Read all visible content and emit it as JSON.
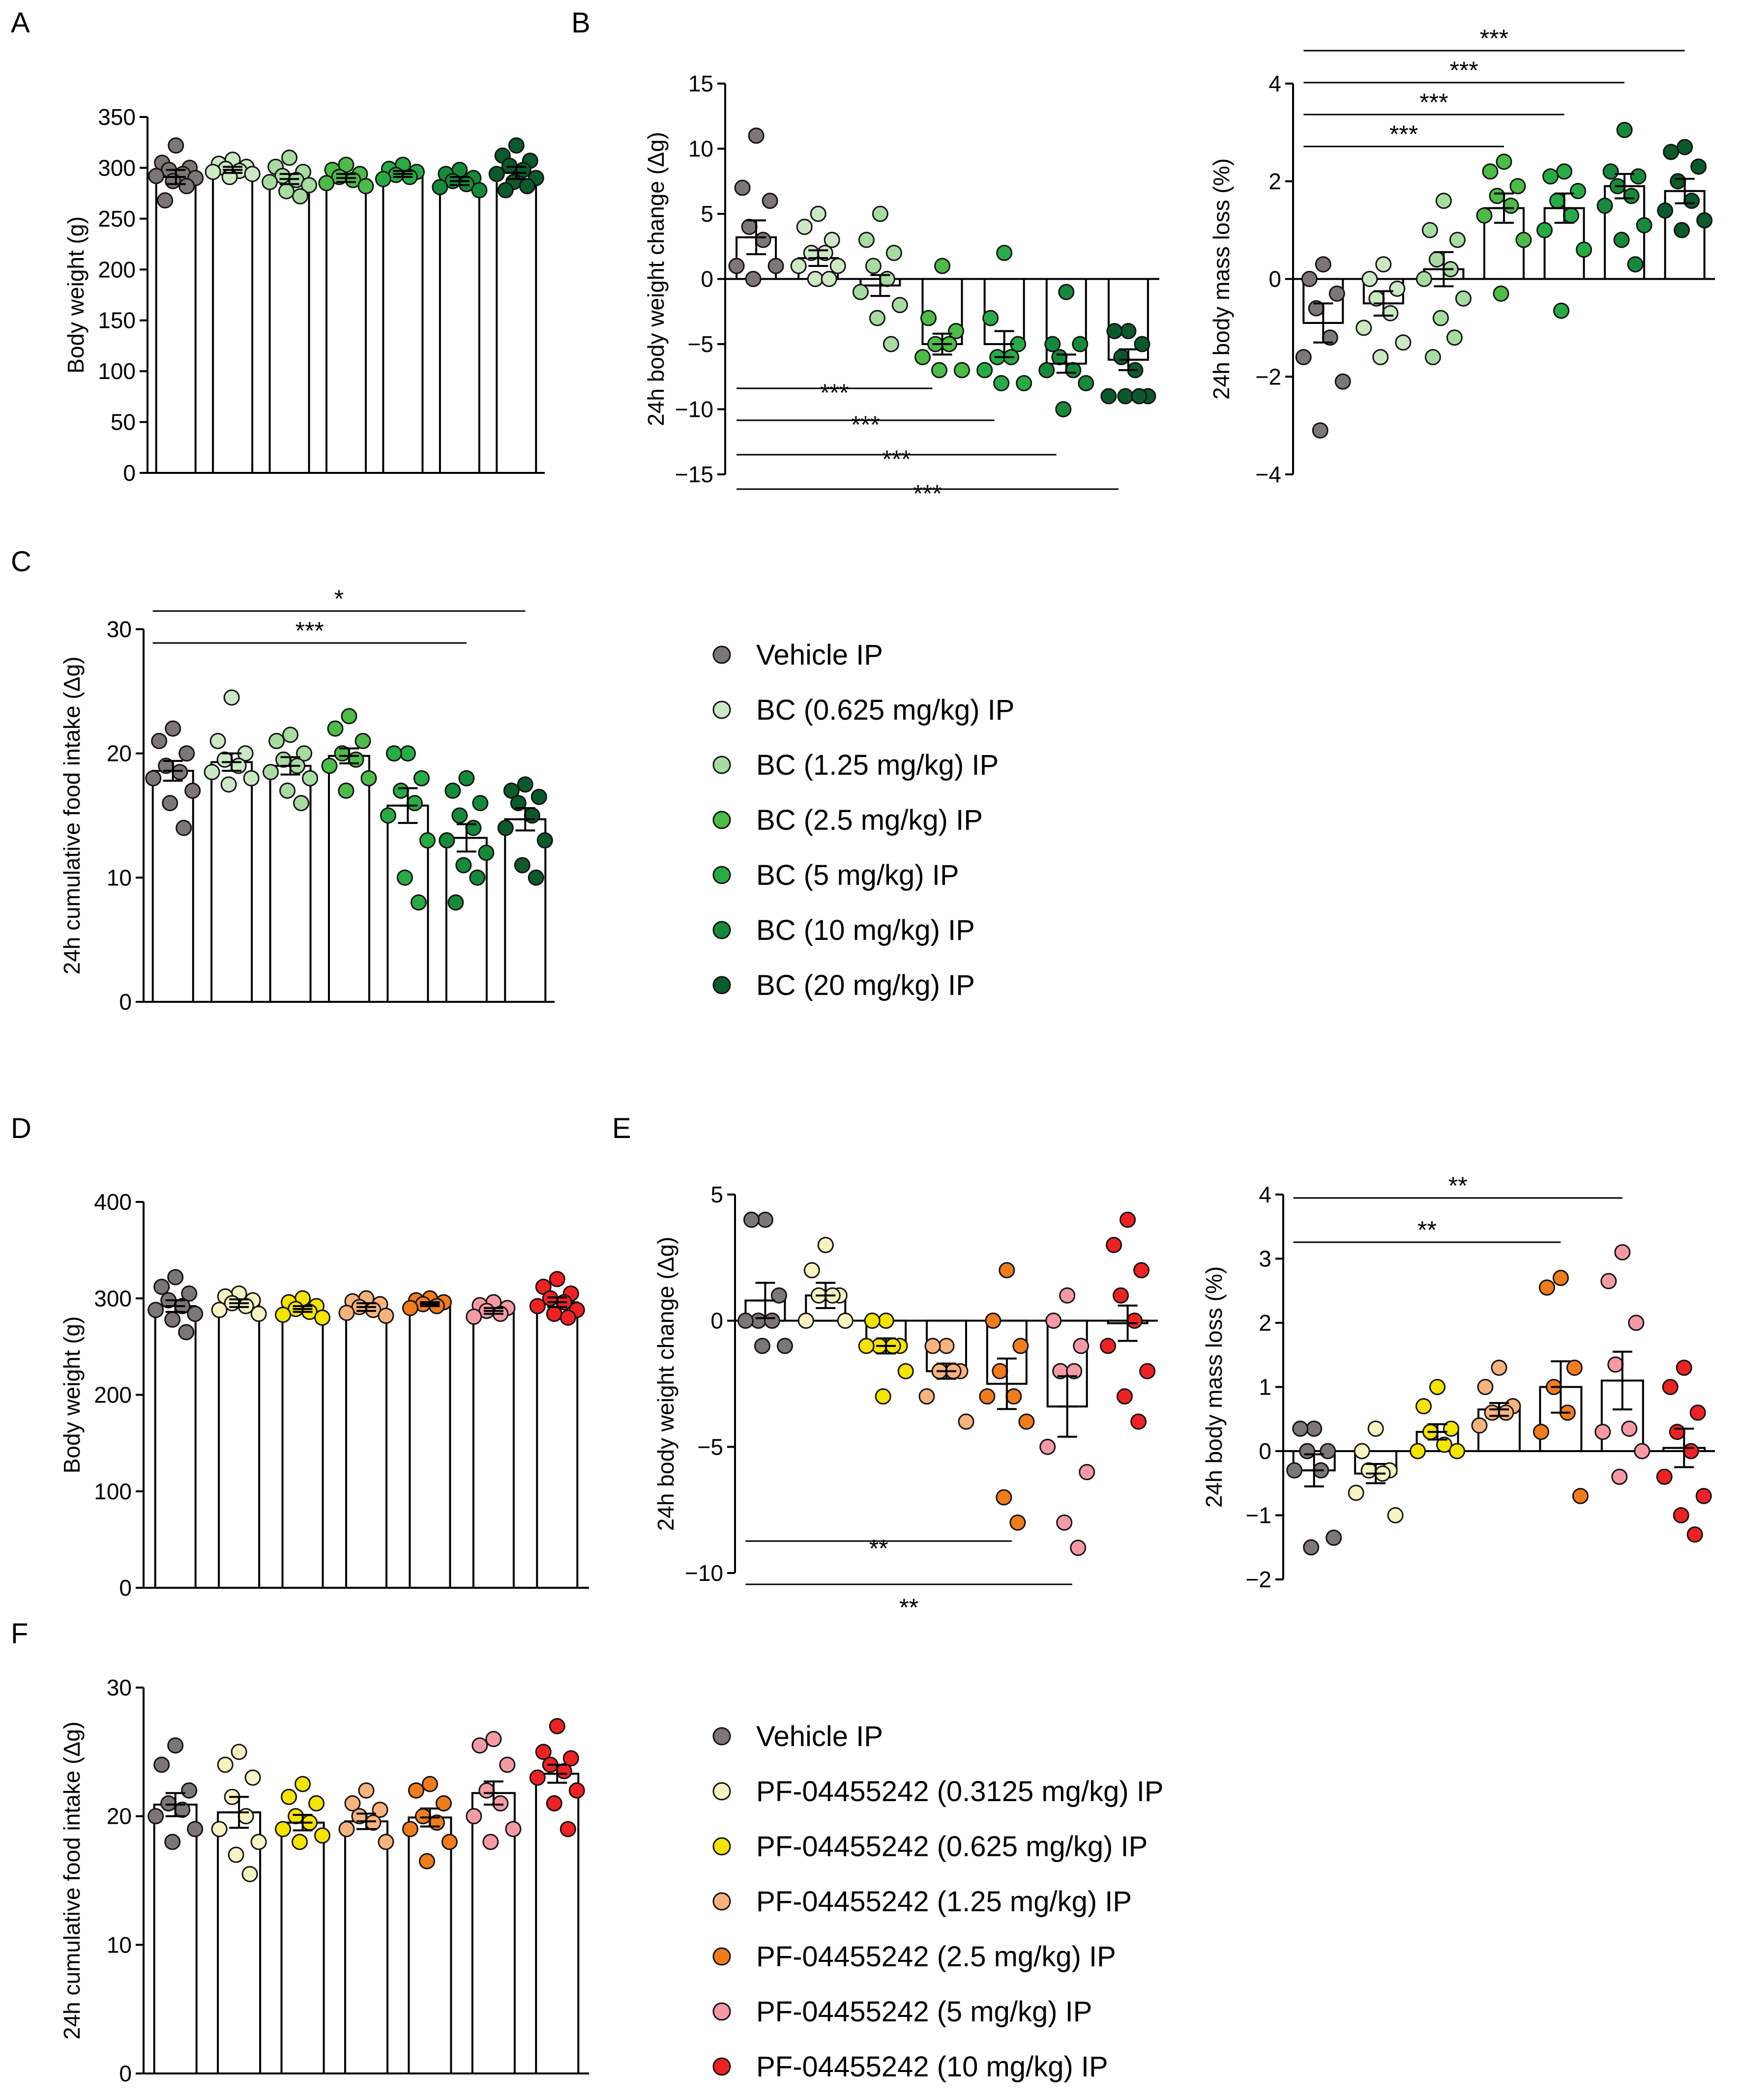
{
  "palettes": {
    "green": [
      "#7c7675",
      "#cde8c5",
      "#a8dba2",
      "#4cbb47",
      "#27ac45",
      "#168a3b",
      "#0b5a2b"
    ],
    "pf": [
      "#7c7675",
      "#f8f4c2",
      "#f4e400",
      "#f7b37c",
      "#f07c1c",
      "#f59aa5",
      "#ee2222"
    ]
  },
  "legends": [
    {
      "name": "legend-bc",
      "palette": "green",
      "items": [
        "Vehicle IP",
        "BC (0.625 mg/kg) IP",
        "BC (1.25 mg/kg) IP",
        "BC (2.5 mg/kg) IP",
        "BC (5 mg/kg) IP",
        "BC (10 mg/kg) IP",
        "BC (20 mg/kg) IP"
      ]
    },
    {
      "name": "legend-pf",
      "palette": "pf",
      "items": [
        "Vehicle IP",
        "PF-04455242 (0.3125 mg/kg) IP",
        "PF-04455242 (0.625 mg/kg) IP",
        "PF-04455242 (1.25 mg/kg) IP",
        "PF-04455242 (2.5 mg/kg) IP",
        "PF-04455242 (5 mg/kg) IP",
        "PF-04455242 (10 mg/kg) IP"
      ]
    }
  ],
  "chart_data": [
    {
      "id": "A-body-weight",
      "panel_label": "A",
      "type": "bar",
      "palette": "green",
      "ylabel": "Body weight (g)",
      "ylim": [
        0,
        350
      ],
      "yticks": [
        0,
        50,
        100,
        150,
        200,
        250,
        300,
        350
      ],
      "groups": [
        {
          "mean": 291,
          "sem": 7,
          "points": [
            322,
            305,
            300,
            298,
            294,
            292,
            290,
            287,
            282,
            268
          ]
        },
        {
          "mean": 298,
          "sem": 3,
          "points": [
            308,
            304,
            301,
            299,
            297,
            296,
            294,
            291
          ]
        },
        {
          "mean": 289,
          "sem": 5,
          "points": [
            310,
            301,
            296,
            292,
            288,
            286,
            283,
            277,
            272
          ]
        },
        {
          "mean": 290,
          "sem": 4,
          "points": [
            303,
            298,
            294,
            291,
            288,
            285,
            282
          ]
        },
        {
          "mean": 294,
          "sem": 3,
          "points": [
            303,
            299,
            296,
            293,
            291,
            289
          ]
        },
        {
          "mean": 287,
          "sem": 4,
          "points": [
            298,
            294,
            290,
            287,
            284,
            281,
            278
          ]
        },
        {
          "mean": 295,
          "sem": 6,
          "points": [
            322,
            312,
            307,
            302,
            298,
            294,
            290,
            286,
            282,
            278
          ]
        }
      ],
      "significance": []
    },
    {
      "id": "B-24h-body-weight-change",
      "panel_label": "B",
      "type": "bar",
      "palette": "green",
      "ylabel": "24h body weight change (Δg)",
      "ylim": [
        -15,
        15
      ],
      "yticks": [
        -15,
        -10,
        -5,
        0,
        5,
        10,
        15
      ],
      "groups": [
        {
          "mean": 3.2,
          "sem": 1.3,
          "points": [
            11,
            7,
            6,
            4,
            3,
            1,
            1,
            0
          ]
        },
        {
          "mean": 1.6,
          "sem": 0.6,
          "points": [
            5,
            4,
            3,
            2,
            2,
            1,
            1,
            0,
            0
          ]
        },
        {
          "mean": -0.5,
          "sem": 0.8,
          "points": [
            5,
            3,
            2,
            1,
            0,
            -1,
            -2,
            -3,
            -5
          ]
        },
        {
          "mean": -5.0,
          "sem": 0.8,
          "points": [
            1,
            -3,
            -4,
            -5,
            -5,
            -6,
            -7,
            -7
          ]
        },
        {
          "mean": -5.0,
          "sem": 1.0,
          "points": [
            2,
            -3,
            -5,
            -6,
            -6,
            -7,
            -8,
            -8
          ]
        },
        {
          "mean": -6.5,
          "sem": 0.7,
          "points": [
            -1,
            -5,
            -5,
            -6,
            -7,
            -7,
            -8,
            -10
          ]
        },
        {
          "mean": -6.2,
          "sem": 0.8,
          "points": [
            -4,
            -4,
            -5,
            -6,
            -7,
            -9,
            -9,
            -9,
            -9
          ]
        }
      ],
      "significance": [
        {
          "from": 0,
          "to": 3,
          "label": "***"
        },
        {
          "from": 0,
          "to": 4,
          "label": "***"
        },
        {
          "from": 0,
          "to": 5,
          "label": "***"
        },
        {
          "from": 0,
          "to": 6,
          "label": "***"
        }
      ]
    },
    {
      "id": "B-24h-body-mass-loss",
      "panel_label": "",
      "type": "bar",
      "palette": "green",
      "ylabel": "24h body mass loss (%)",
      "ylim": [
        -4,
        4
      ],
      "yticks": [
        -4,
        -2,
        0,
        2,
        4
      ],
      "groups": [
        {
          "mean": -0.9,
          "sem": 0.4,
          "points": [
            0.3,
            0,
            -0.3,
            -0.6,
            -1.2,
            -1.6,
            -2.1,
            -3.1
          ]
        },
        {
          "mean": -0.5,
          "sem": 0.25,
          "points": [
            0.3,
            0,
            -0.2,
            -0.4,
            -0.7,
            -1.0,
            -1.3,
            -1.6
          ]
        },
        {
          "mean": 0.2,
          "sem": 0.35,
          "points": [
            1.6,
            1.0,
            0.8,
            0.4,
            0.2,
            0,
            -0.4,
            -0.8,
            -1.2,
            -1.6
          ]
        },
        {
          "mean": 1.45,
          "sem": 0.3,
          "points": [
            2.4,
            2.2,
            1.9,
            1.7,
            1.5,
            1.3,
            0.8,
            -0.3
          ]
        },
        {
          "mean": 1.45,
          "sem": 0.3,
          "points": [
            2.2,
            2.1,
            1.8,
            1.6,
            1.3,
            1.0,
            0.6,
            -0.65
          ]
        },
        {
          "mean": 1.9,
          "sem": 0.25,
          "points": [
            3.05,
            2.2,
            2.1,
            1.9,
            1.7,
            1.5,
            1.1,
            0.8,
            0.3
          ]
        },
        {
          "mean": 1.8,
          "sem": 0.25,
          "points": [
            2.7,
            2.6,
            2.3,
            2.0,
            1.6,
            1.4,
            1.2,
            1.0
          ]
        }
      ],
      "significance": [
        {
          "from": 0,
          "to": 6,
          "label": "***"
        },
        {
          "from": 0,
          "to": 5,
          "label": "***"
        },
        {
          "from": 0,
          "to": 4,
          "label": "***"
        },
        {
          "from": 0,
          "to": 3,
          "label": "***"
        }
      ]
    },
    {
      "id": "C-24h-cumulative-food-intake",
      "panel_label": "C",
      "type": "bar",
      "palette": "green",
      "ylabel": "24h cumulative food intake (Δg)",
      "ylim": [
        0,
        30
      ],
      "yticks": [
        0,
        10,
        20,
        30
      ],
      "groups": [
        {
          "mean": 18.6,
          "sem": 0.8,
          "points": [
            22,
            21,
            20,
            19,
            18.5,
            18,
            17,
            16,
            14
          ]
        },
        {
          "mean": 19.3,
          "sem": 0.7,
          "points": [
            24.5,
            21,
            20,
            19.5,
            19,
            18.5,
            18,
            17.5
          ]
        },
        {
          "mean": 19.0,
          "sem": 0.7,
          "points": [
            21.5,
            21,
            20,
            19.5,
            19,
            18.5,
            18,
            17,
            16
          ]
        },
        {
          "mean": 19.8,
          "sem": 0.6,
          "points": [
            23,
            22,
            21,
            20,
            19.5,
            19,
            18,
            17
          ]
        },
        {
          "mean": 15.8,
          "sem": 1.4,
          "points": [
            20,
            20,
            18,
            17,
            16,
            15,
            13,
            10,
            8
          ]
        },
        {
          "mean": 13.2,
          "sem": 1.1,
          "points": [
            18,
            17,
            16,
            15,
            14,
            13,
            12,
            11,
            10,
            8
          ]
        },
        {
          "mean": 14.7,
          "sem": 0.9,
          "points": [
            17.5,
            17,
            16.5,
            16,
            15,
            14,
            13,
            11,
            10
          ]
        }
      ],
      "significance": [
        {
          "from": 0,
          "to": 6,
          "label": "*"
        },
        {
          "from": 0,
          "to": 5,
          "label": "***"
        }
      ]
    },
    {
      "id": "D-body-weight",
      "panel_label": "D",
      "type": "bar",
      "palette": "pf",
      "ylabel": "Body weight (g)",
      "ylim": [
        0,
        400
      ],
      "yticks": [
        0,
        100,
        200,
        300,
        400
      ],
      "groups": [
        {
          "mean": 292,
          "sem": 6,
          "points": [
            322,
            312,
            305,
            298,
            292,
            288,
            284,
            278,
            265
          ]
        },
        {
          "mean": 295,
          "sem": 4,
          "points": [
            305,
            302,
            298,
            295,
            292,
            288,
            284
          ]
        },
        {
          "mean": 289,
          "sem": 3,
          "points": [
            300,
            296,
            292,
            289,
            286,
            283,
            280
          ]
        },
        {
          "mean": 291,
          "sem": 4,
          "points": [
            300,
            297,
            294,
            291,
            288,
            285,
            282
          ]
        },
        {
          "mean": 294,
          "sem": 2,
          "points": [
            300,
            298,
            296,
            294,
            292,
            290
          ]
        },
        {
          "mean": 287,
          "sem": 3,
          "points": [
            296,
            293,
            290,
            287,
            284,
            281
          ]
        },
        {
          "mean": 296,
          "sem": 5,
          "points": [
            320,
            312,
            305,
            300,
            296,
            292,
            288,
            284,
            280
          ]
        }
      ],
      "significance": []
    },
    {
      "id": "E-24h-body-weight-change",
      "panel_label": "E",
      "type": "bar",
      "palette": "pf",
      "ylabel": "24h body weight change (Δg)",
      "ylim": [
        -10,
        5
      ],
      "yticks": [
        -10,
        -5,
        0,
        5
      ],
      "groups": [
        {
          "mean": 0.8,
          "sem": 0.7,
          "points": [
            4,
            4,
            1,
            0,
            0,
            0,
            -1,
            -1
          ]
        },
        {
          "mean": 1.0,
          "sem": 0.5,
          "points": [
            3,
            2,
            1,
            1,
            1,
            0,
            0
          ]
        },
        {
          "mean": -1.0,
          "sem": 0.3,
          "points": [
            0,
            0,
            -1,
            -1,
            -1,
            -1,
            -2,
            -3
          ]
        },
        {
          "mean": -2.0,
          "sem": 0.3,
          "points": [
            -1,
            -1,
            -2,
            -2,
            -2,
            -3,
            -4
          ]
        },
        {
          "mean": -2.5,
          "sem": 1.0,
          "points": [
            2,
            0,
            -1,
            -2,
            -3,
            -3,
            -4,
            -7,
            -8
          ]
        },
        {
          "mean": -3.4,
          "sem": 1.2,
          "points": [
            1,
            0,
            -1,
            -2,
            -2,
            -5,
            -6,
            -8,
            -9
          ]
        },
        {
          "mean": -0.1,
          "sem": 0.7,
          "points": [
            4,
            3,
            2,
            1,
            0,
            -1,
            -2,
            -3,
            -4
          ]
        }
      ],
      "significance": [
        {
          "from": 0,
          "to": 4,
          "label": "**"
        },
        {
          "from": 0,
          "to": 5,
          "label": "**"
        }
      ]
    },
    {
      "id": "E-24h-body-mass-loss",
      "panel_label": "",
      "type": "bar",
      "palette": "pf",
      "ylabel": "24h body mass loss (%)",
      "ylim": [
        -2,
        4
      ],
      "yticks": [
        -2,
        -1,
        0,
        1,
        2,
        3,
        4
      ],
      "groups": [
        {
          "mean": -0.3,
          "sem": 0.25,
          "points": [
            0.35,
            0.35,
            0,
            0,
            -0.3,
            -0.3,
            -1.35,
            -1.5
          ]
        },
        {
          "mean": -0.35,
          "sem": 0.15,
          "points": [
            0.35,
            0,
            -0.3,
            -0.3,
            -0.35,
            -0.65,
            -1.0
          ]
        },
        {
          "mean": 0.3,
          "sem": 0.12,
          "points": [
            1.0,
            0.7,
            0.35,
            0.3,
            0.1,
            0,
            0
          ]
        },
        {
          "mean": 0.65,
          "sem": 0.1,
          "points": [
            1.3,
            1.0,
            0.7,
            0.6,
            0.6,
            0.4
          ]
        },
        {
          "mean": 1.0,
          "sem": 0.4,
          "points": [
            2.7,
            2.55,
            1.3,
            1.0,
            0.6,
            0.3,
            -0.7
          ]
        },
        {
          "mean": 1.1,
          "sem": 0.45,
          "points": [
            3.1,
            2.65,
            2.0,
            1.35,
            0.35,
            0.3,
            0,
            -0.4
          ]
        },
        {
          "mean": 0.05,
          "sem": 0.3,
          "points": [
            1.3,
            1.0,
            0.6,
            0.3,
            0,
            -0.4,
            -0.7,
            -1.0,
            -1.3
          ]
        }
      ],
      "significance": [
        {
          "from": 0,
          "to": 5,
          "label": "**"
        },
        {
          "from": 0,
          "to": 4,
          "label": "**"
        }
      ]
    },
    {
      "id": "F-24h-cumulative-food-intake",
      "panel_label": "F",
      "type": "bar",
      "palette": "pf",
      "ylabel": "24h cumulative food intake (Δg)",
      "ylim": [
        0,
        30
      ],
      "yticks": [
        0,
        10,
        20,
        30
      ],
      "groups": [
        {
          "mean": 20.9,
          "sem": 0.9,
          "points": [
            25.5,
            24,
            22,
            21,
            20.5,
            20,
            19,
            18
          ]
        },
        {
          "mean": 20.3,
          "sem": 1.2,
          "points": [
            25,
            24,
            23,
            21.5,
            20,
            19,
            18,
            17,
            15.5
          ]
        },
        {
          "mean": 19.5,
          "sem": 0.6,
          "points": [
            22.5,
            21.5,
            21,
            20,
            19.5,
            19,
            18.5,
            18
          ]
        },
        {
          "mean": 19.6,
          "sem": 0.6,
          "points": [
            22,
            21,
            20.5,
            20,
            19.5,
            19,
            18
          ]
        },
        {
          "mean": 19.9,
          "sem": 0.7,
          "points": [
            22.5,
            22,
            21,
            20,
            19.5,
            19,
            18,
            16.5
          ]
        },
        {
          "mean": 21.8,
          "sem": 0.9,
          "points": [
            26,
            25.5,
            24,
            22,
            21,
            20,
            19,
            18
          ]
        },
        {
          "mean": 23.3,
          "sem": 0.7,
          "points": [
            27,
            25,
            24.5,
            24,
            23.5,
            23,
            22,
            21,
            19
          ]
        }
      ],
      "significance": []
    }
  ]
}
